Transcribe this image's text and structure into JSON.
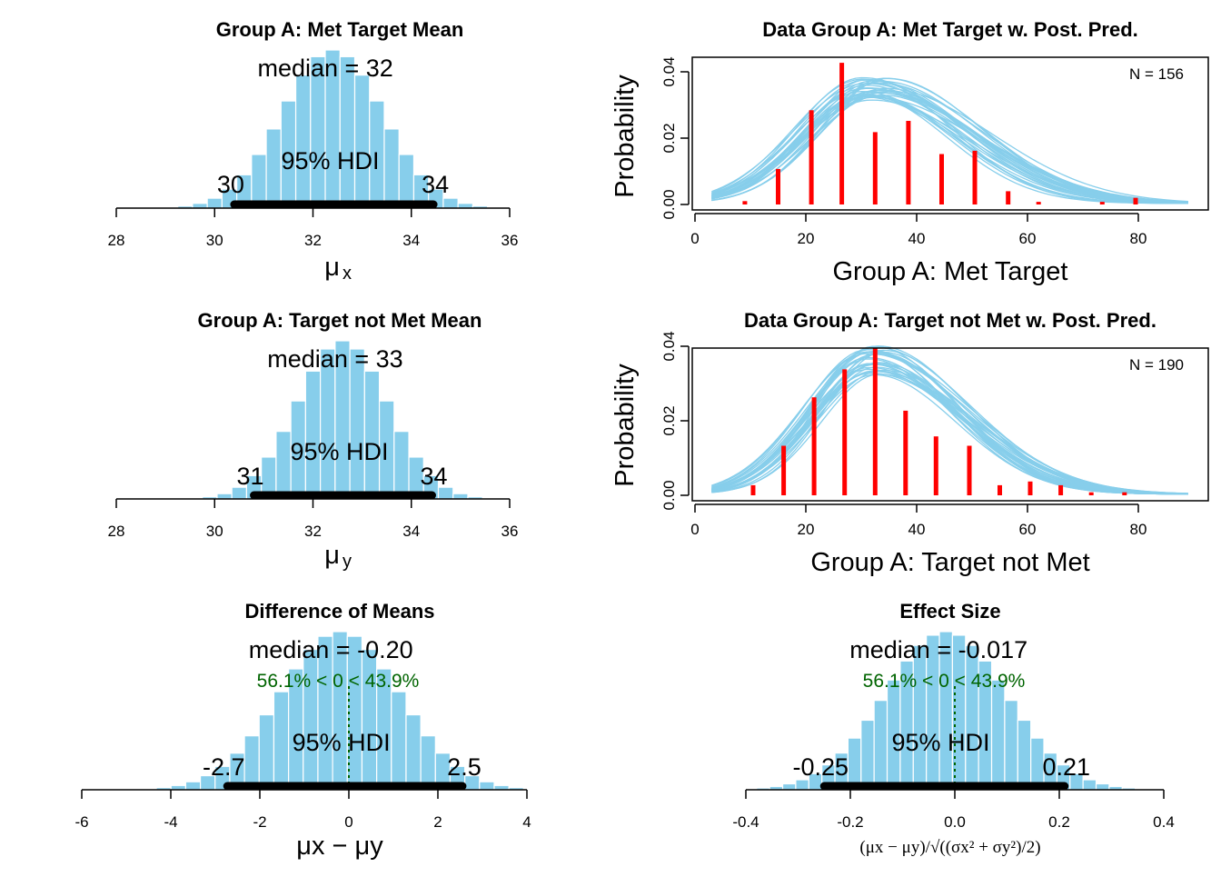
{
  "chart_data": [
    {
      "type": "histogram",
      "title": "Group A: Met Target Mean",
      "xlabel_main": "μ",
      "xlabel_sub": "x",
      "xticks": [
        "28",
        "30",
        "32",
        "34",
        "36"
      ],
      "xlim": [
        27.2,
        37.7
      ],
      "bin_width": 0.3,
      "center": 32.4,
      "sd": 1.02,
      "x_range": [
        26.6,
        37.5
      ],
      "median_text": "median = 32",
      "hdi_text": "95% HDI",
      "hdi": [
        30.4,
        34.45
      ],
      "hdi_low_label": "30",
      "hdi_high_label": "34",
      "bar_color": "#87CEEB"
    },
    {
      "type": "histogram",
      "title": "Group A: Target not Met Mean",
      "xlabel_main": "μ",
      "xlabel_sub": "y",
      "xticks": [
        "28",
        "30",
        "32",
        "34",
        "36"
      ],
      "xlim": [
        27.2,
        37.7
      ],
      "bin_width": 0.3,
      "center": 32.6,
      "sd": 0.92,
      "x_range": [
        29.0,
        36.3
      ],
      "median_text": "median = 33",
      "hdi_text": "95% HDI",
      "hdi": [
        30.8,
        34.42
      ],
      "hdi_low_label": "31",
      "hdi_high_label": "34",
      "bar_color": "#87CEEB"
    },
    {
      "type": "histogram",
      "title": "Difference of Means",
      "xlabel": "μx − μy",
      "xticks": [
        "-6",
        "-4",
        "-2",
        "0",
        "2",
        "4"
      ],
      "xlim": [
        -6.4,
        5.4
      ],
      "bin_width": 0.33,
      "center": -0.2,
      "sd": 1.35,
      "x_range": [
        -5.6,
        5.2
      ],
      "median_text": "median = -0.20",
      "compare_text": "56.1% < 0 < 43.9%",
      "compare_value": 0,
      "hdi_text": "95% HDI",
      "hdi": [
        -2.73,
        2.55
      ],
      "hdi_low_label": "-2.7",
      "hdi_high_label": "2.5",
      "bar_color": "#87CEEB"
    },
    {
      "type": "histogram",
      "title": "Effect Size",
      "xlabel": "(μx − μy)/√((σx² + σy²)/2)",
      "xticks": [
        "-0.4",
        "-0.2",
        "0.0",
        "0.2",
        "0.4"
      ],
      "xlim": [
        -0.47,
        0.47
      ],
      "bin_width": 0.025,
      "center": -0.017,
      "sd": 0.117,
      "x_range": [
        -0.45,
        0.47
      ],
      "median_text": "median = -0.017",
      "compare_text": "56.1% < 0 < 43.9%",
      "compare_value": 0,
      "hdi_text": "95% HDI",
      "hdi": [
        -0.25,
        0.21
      ],
      "hdi_low_label": "-0.25",
      "hdi_high_label": "0.21",
      "bar_color": "#87CEEB"
    },
    {
      "type": "bar",
      "title": "Data Group A: Met Target w. Post. Pred.",
      "xlabel": "Group A: Met Target",
      "ylabel": "Probability",
      "xticks": [
        "0",
        "20",
        "40",
        "60",
        "80"
      ],
      "yticks": [
        "0.00",
        "0.02",
        "0.04"
      ],
      "xlim": [
        0,
        90
      ],
      "ylim": [
        0,
        0.043
      ],
      "n_label": "N = 156",
      "bar_color": "#FF0000",
      "curve_color": "#87CEEB",
      "bars_x": [
        9,
        15,
        21,
        26.5,
        32.5,
        38.5,
        44.5,
        50.5,
        56.5,
        62,
        73.5,
        79.5
      ],
      "bars_y": [
        0.001,
        0.0107,
        0.0284,
        0.0427,
        0.0218,
        0.0252,
        0.0152,
        0.0162,
        0.004,
        0.0008,
        0.0008,
        0.002
      ],
      "post_pred": {
        "mean_range": [
          30,
          35
        ],
        "sd_range": [
          12,
          14
        ],
        "peak_range": [
          0.031,
          0.038
        ],
        "x_range": [
          3,
          89
        ],
        "count": 30
      }
    },
    {
      "type": "bar",
      "title": "Data Group A: Target not Met w. Post. Pred.",
      "xlabel": "Group A: Target not Met",
      "ylabel": "Probability",
      "xticks": [
        "0",
        "20",
        "40",
        "60",
        "80"
      ],
      "yticks": [
        "0.00",
        "0.02",
        "0.04"
      ],
      "xlim": [
        0,
        90
      ],
      "ylim": [
        0,
        0.043
      ],
      "n_label": "N = 190",
      "bar_color": "#FF0000",
      "curve_color": "#87CEEB",
      "bars_x": [
        10.5,
        16,
        21.5,
        27,
        32.5,
        38,
        43.5,
        49.5,
        55,
        60.5,
        66,
        71.5,
        77.5
      ],
      "bars_y": [
        0.0027,
        0.0133,
        0.0263,
        0.0338,
        0.0395,
        0.0227,
        0.0158,
        0.0133,
        0.0027,
        0.0037,
        0.0027,
        0.0008,
        0.0008
      ],
      "post_pred": {
        "mean_range": [
          31,
          34
        ],
        "sd_range": [
          11,
          13
        ],
        "peak_range": [
          0.032,
          0.04
        ],
        "x_range": [
          3,
          89
        ],
        "count": 30
      }
    }
  ]
}
